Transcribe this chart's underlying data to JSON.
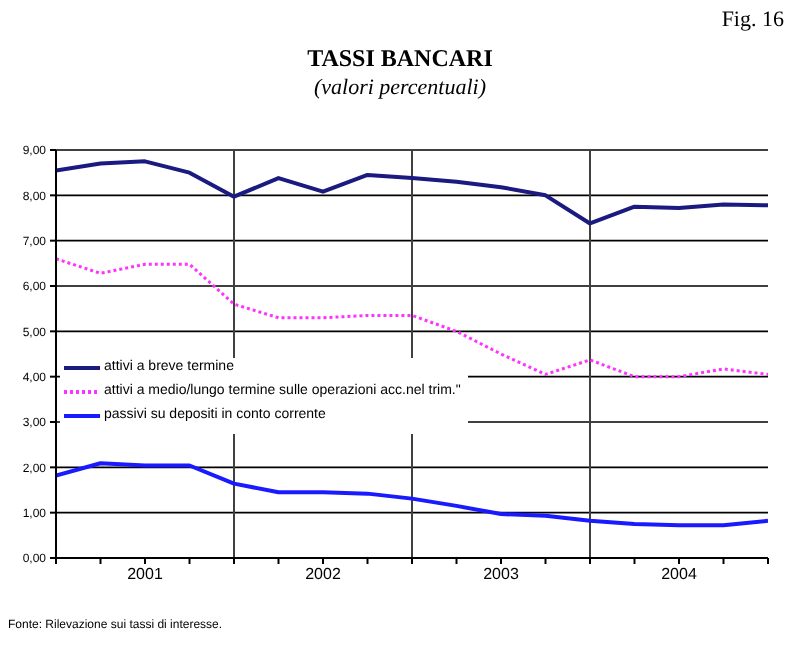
{
  "chart_data": {
    "type": "line",
    "title": "TASSI BANCARI",
    "subtitle": "(valori percentuali)",
    "annotations": [
      "Fig. 16",
      "Fonte: Rilevazione sui tassi di interesse."
    ],
    "x": [
      2001,
      2001.25,
      2001.5,
      2001.75,
      2002,
      2002.25,
      2002.5,
      2002.75,
      2003,
      2003.25,
      2003.5,
      2003.75,
      2004,
      2004.25,
      2004.5,
      2004.75,
      2005
    ],
    "xlim": [
      2001,
      2005
    ],
    "xticks": [
      {
        "value": 2001,
        "label": null
      },
      {
        "value": 2001.25,
        "label": null
      },
      {
        "value": 2001.5,
        "label": "2001"
      },
      {
        "value": 2001.75,
        "label": null
      },
      {
        "value": 2002,
        "label": null
      },
      {
        "value": 2002.25,
        "label": null
      },
      {
        "value": 2002.5,
        "label": "2002"
      },
      {
        "value": 2002.75,
        "label": null
      },
      {
        "value": 2003,
        "label": null
      },
      {
        "value": 2003.25,
        "label": null
      },
      {
        "value": 2003.5,
        "label": "2003"
      },
      {
        "value": 2003.75,
        "label": null
      },
      {
        "value": 2004,
        "label": null
      },
      {
        "value": 2004.25,
        "label": null
      },
      {
        "value": 2004.5,
        "label": "2004"
      },
      {
        "value": 2004.75,
        "label": null
      },
      {
        "value": 2005,
        "label": null
      }
    ],
    "ylim": [
      0,
      9
    ],
    "yticks": [
      {
        "value": 0,
        "label": "0,00"
      },
      {
        "value": 1,
        "label": "1,00"
      },
      {
        "value": 2,
        "label": "2,00"
      },
      {
        "value": 3,
        "label": "3,00"
      },
      {
        "value": 4,
        "label": "4,00"
      },
      {
        "value": 5,
        "label": "5,00"
      },
      {
        "value": 6,
        "label": "6,00"
      },
      {
        "value": 7,
        "label": "7,00"
      },
      {
        "value": 8,
        "label": "8,00"
      },
      {
        "value": 9,
        "label": "9,00"
      }
    ],
    "grid": "y",
    "legend": "left",
    "marker": "none",
    "ref_lines": [
      {
        "axis": "x",
        "value": 2002,
        "color": "#404040"
      },
      {
        "axis": "x",
        "value": 2003,
        "color": "#404040"
      },
      {
        "axis": "x",
        "value": 2004,
        "color": "#404040"
      }
    ],
    "series": [
      {
        "name": "attivi a breve termine",
        "color": "#1a1a80",
        "line_style": "solid",
        "values": [
          8.55,
          8.7,
          8.75,
          8.5,
          7.97,
          8.38,
          8.08,
          8.45,
          8.38,
          8.3,
          8.18,
          8.0,
          7.38,
          7.75,
          7.72,
          7.8,
          7.78
        ]
      },
      {
        "name": "attivi a medio/lungo termine sulle operazioni acc.nel trim.\"",
        "color": "#ff33ff",
        "line_style": "dotted",
        "values": [
          6.6,
          6.28,
          6.48,
          6.48,
          5.6,
          5.3,
          5.3,
          5.35,
          5.35,
          5.0,
          4.5,
          4.05,
          4.37,
          4.0,
          4.0,
          4.17,
          4.05
        ]
      },
      {
        "name": "passivi su depositi in conto corrente",
        "color": "#1a1aff",
        "line_style": "solid",
        "values": [
          1.82,
          2.09,
          2.04,
          2.04,
          1.64,
          1.45,
          1.45,
          1.42,
          1.31,
          1.15,
          0.97,
          0.93,
          0.82,
          0.75,
          0.72,
          0.72,
          0.82
        ]
      }
    ]
  }
}
